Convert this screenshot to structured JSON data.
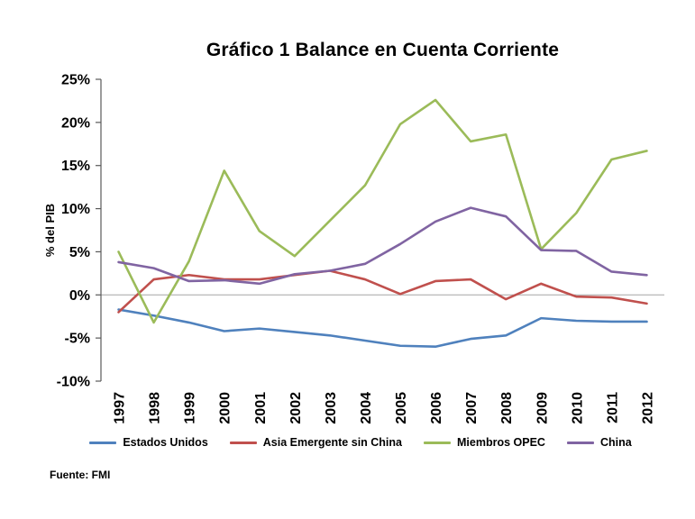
{
  "chart_data": {
    "type": "line",
    "title": "Gráfico 1 Balance en Cuenta Corriente",
    "ylabel": "% del PIB",
    "xlabel": "",
    "source": "Fuente: FMI",
    "legend_position": "bottom",
    "grid": "zero-line-only",
    "ylim": [
      -10,
      25
    ],
    "ytick_step": 5,
    "ytick_labels": [
      "25%",
      "20%",
      "15%",
      "10%",
      "5%",
      "0%",
      "-5%",
      "-10%"
    ],
    "categories": [
      "1997",
      "1998",
      "1999",
      "2000",
      "2001",
      "2002",
      "2003",
      "2004",
      "2005",
      "2006",
      "2007",
      "2008",
      "2009",
      "2010",
      "2011",
      "2012"
    ],
    "series": [
      {
        "name": "Estados Unidos",
        "color": "#4F81BD",
        "values": [
          -1.7,
          -2.4,
          -3.2,
          -4.2,
          -3.9,
          -4.3,
          -4.7,
          -5.3,
          -5.9,
          -6.0,
          -5.1,
          -4.7,
          -2.7,
          -3.0,
          -3.1,
          -3.1
        ]
      },
      {
        "name": "Asia Emergente sin China",
        "color": "#C0504D",
        "values": [
          -2.0,
          1.8,
          2.3,
          1.8,
          1.8,
          2.3,
          2.8,
          1.8,
          0.1,
          1.6,
          1.8,
          -0.5,
          1.3,
          -0.2,
          -0.3,
          -1.0
        ]
      },
      {
        "name": "Miembros OPEC",
        "color": "#9BBB59",
        "values": [
          5.0,
          -3.2,
          3.9,
          14.4,
          7.4,
          4.5,
          8.6,
          12.7,
          19.8,
          22.6,
          17.8,
          18.6,
          5.3,
          9.5,
          15.7,
          16.7
        ]
      },
      {
        "name": "China",
        "color": "#8064A2",
        "values": [
          3.8,
          3.1,
          1.6,
          1.7,
          1.3,
          2.4,
          2.8,
          3.6,
          5.9,
          8.5,
          10.1,
          9.1,
          5.2,
          5.1,
          2.7,
          2.3
        ]
      }
    ]
  }
}
